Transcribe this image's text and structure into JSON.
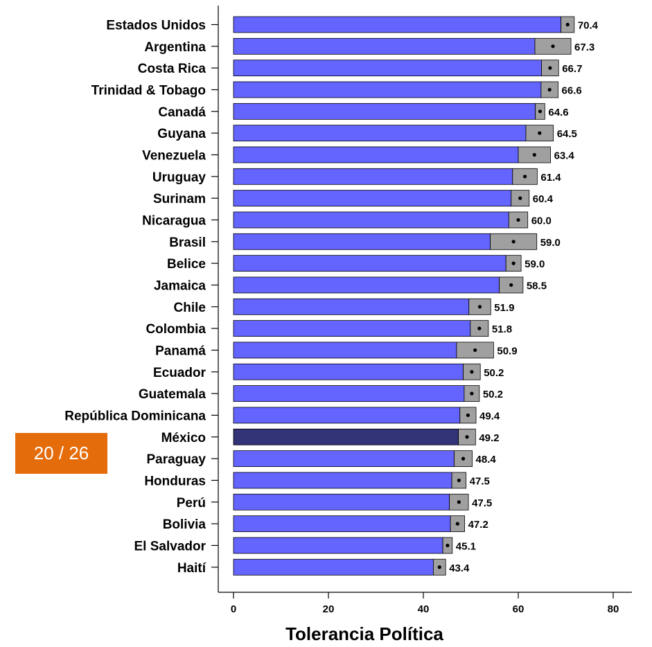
{
  "chart_data": {
    "type": "bar",
    "orientation": "horizontal",
    "xlabel": "Tolerancia Política",
    "xlim": [
      0,
      80
    ],
    "xticks": [
      0,
      20,
      40,
      60,
      80
    ],
    "categories": [
      "Estados Unidos",
      "Argentina",
      "Costa Rica",
      "Trinidad & Tobago",
      "Canadá",
      "Guyana",
      "Venezuela",
      "Uruguay",
      "Surinam",
      "Nicaragua",
      "Brasil",
      "Belice",
      "Jamaica",
      "Chile",
      "Colombia",
      "Panamá",
      "Ecuador",
      "Guatemala",
      "República Dominicana",
      "México",
      "Paraguay",
      "Honduras",
      "Perú",
      "Bolivia",
      "El Salvador",
      "Haití"
    ],
    "values": [
      70.4,
      67.3,
      66.7,
      66.6,
      64.6,
      64.5,
      63.4,
      61.4,
      60.4,
      60.0,
      59.0,
      59.0,
      58.5,
      51.9,
      51.8,
      50.9,
      50.2,
      50.2,
      49.4,
      49.2,
      48.4,
      47.5,
      47.5,
      47.2,
      45.1,
      43.4
    ],
    "value_labels": [
      "70.4",
      "67.3",
      "66.7",
      "66.6",
      "64.6",
      "64.5",
      "63.4",
      "61.4",
      "60.4",
      "60.0",
      "59.0",
      "59.0",
      "58.5",
      "51.9",
      "51.8",
      "50.9",
      "50.2",
      "50.2",
      "49.4",
      "49.2",
      "48.4",
      "47.5",
      "47.5",
      "47.2",
      "45.1",
      "43.4"
    ],
    "ci_lower": [
      69.0,
      63.5,
      64.9,
      64.8,
      63.6,
      61.6,
      60.0,
      58.8,
      58.5,
      58.0,
      54.1,
      57.4,
      56.0,
      49.6,
      49.9,
      47.0,
      48.4,
      48.6,
      47.7,
      47.4,
      46.5,
      46.0,
      45.5,
      45.7,
      44.1,
      42.1
    ],
    "ci_upper": [
      71.8,
      71.1,
      68.5,
      68.4,
      65.6,
      67.4,
      66.8,
      64.0,
      62.3,
      62.0,
      63.9,
      60.6,
      61.0,
      54.2,
      53.7,
      54.8,
      52.0,
      51.8,
      51.1,
      51.0,
      50.3,
      49.0,
      49.5,
      48.7,
      46.1,
      44.7
    ],
    "highlight": "México",
    "grid": false,
    "colors": {
      "bar": "#6464ff",
      "highlight_bar": "#333377",
      "ci_box": "#a0a0a0",
      "badge": "#e46c0a"
    }
  },
  "badge": {
    "text": "20 / 26"
  }
}
